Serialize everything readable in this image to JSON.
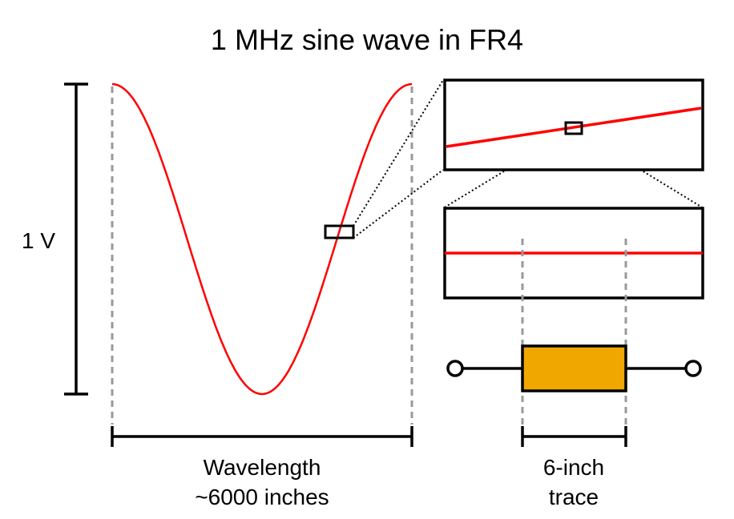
{
  "title": "1 MHz sine wave in FR4",
  "amplitude_label": "1 V",
  "wavelength_label": [
    "Wavelength",
    "~6000 inches"
  ],
  "trace_label": [
    "6-inch",
    "trace"
  ],
  "colors": {
    "wave": "#ff0000",
    "resistor": "#f0a800",
    "guide": "#999999"
  }
}
